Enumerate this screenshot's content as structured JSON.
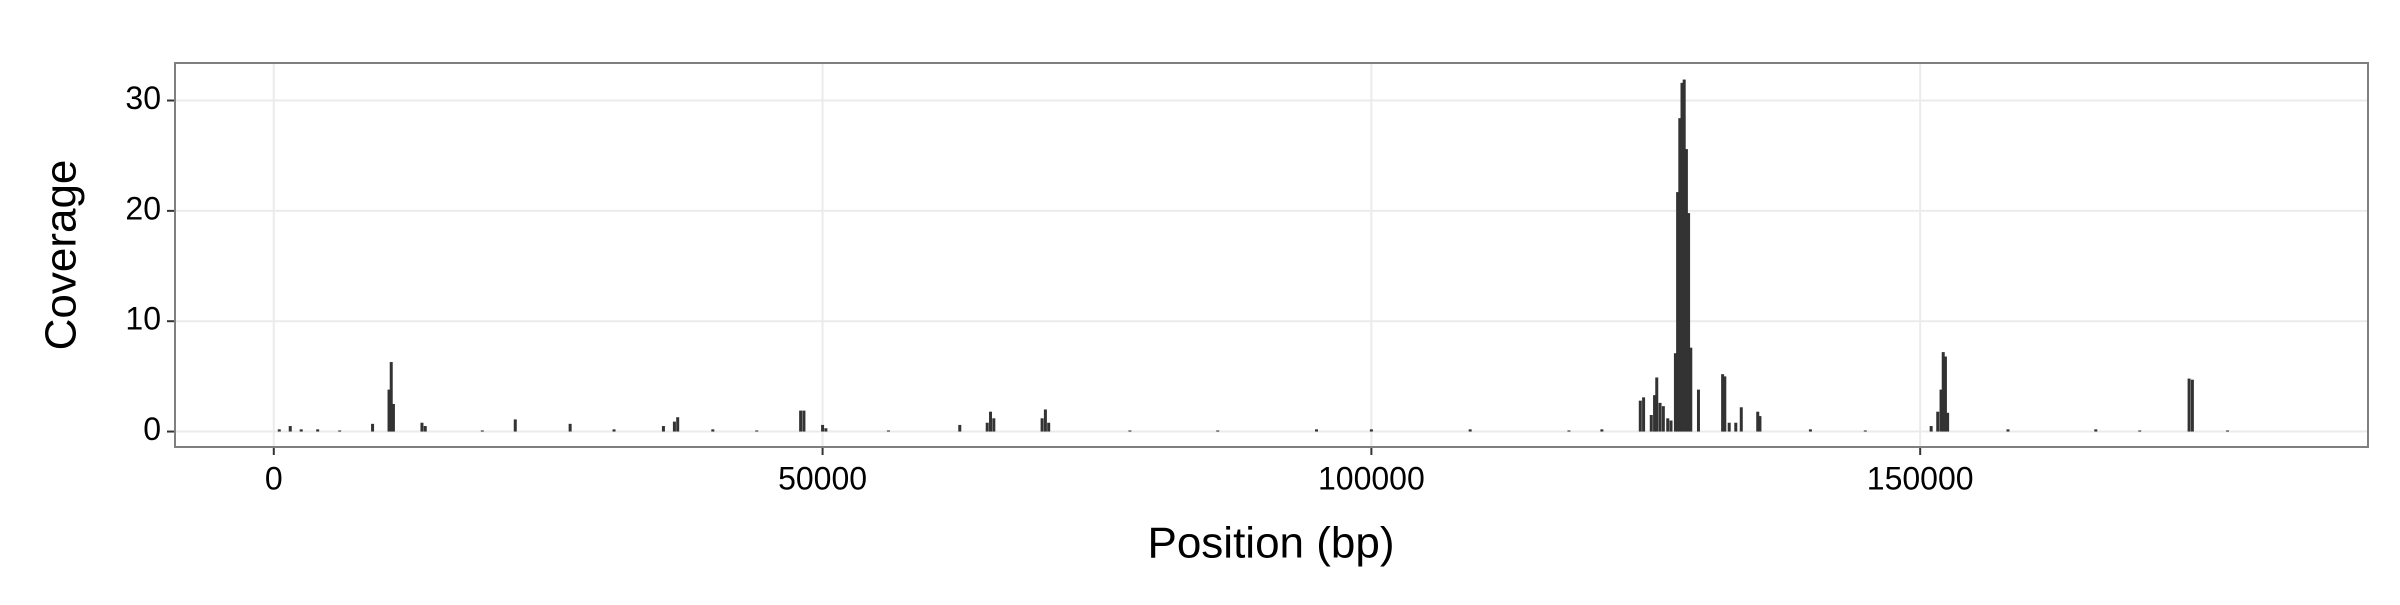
{
  "chart_data": {
    "type": "bar",
    "x_label": "Position (bp)",
    "y_label": "Coverage",
    "x": [
      500,
      1500,
      2500,
      4000,
      6000,
      9000,
      10500,
      10700,
      10900,
      13500,
      13800,
      19000,
      22000,
      27000,
      31000,
      35500,
      36500,
      36800,
      40000,
      44000,
      48000,
      48300,
      50000,
      50300,
      56000,
      62500,
      65000,
      65300,
      65600,
      70000,
      70300,
      70600,
      78000,
      86000,
      95000,
      100000,
      109000,
      118000,
      121000,
      124500,
      124800,
      125500,
      125800,
      126000,
      126300,
      126600,
      127000,
      127300,
      127700,
      127900,
      128100,
      128300,
      128500,
      128700,
      128900,
      129100,
      129800,
      132000,
      132200,
      132600,
      133200,
      133700,
      135200,
      135400,
      140000,
      145000,
      151000,
      151600,
      151900,
      152100,
      152300,
      152500,
      158000,
      166000,
      170000,
      174500,
      174800,
      178000
    ],
    "values": [
      0.2,
      0.5,
      0.2,
      0.2,
      0.1,
      0.7,
      3.8,
      6.3,
      2.5,
      0.8,
      0.5,
      0.1,
      1.1,
      0.7,
      0.2,
      0.5,
      0.9,
      1.3,
      0.2,
      0.1,
      1.9,
      1.9,
      0.6,
      0.3,
      0.1,
      0.6,
      0.8,
      1.8,
      1.2,
      1.2,
      2.0,
      0.8,
      0.1,
      0.1,
      0.2,
      0.2,
      0.2,
      0.1,
      0.2,
      2.8,
      3.1,
      1.5,
      3.3,
      4.9,
      2.6,
      2.3,
      1.2,
      1.0,
      7.1,
      21.7,
      28.4,
      31.6,
      31.9,
      25.6,
      19.8,
      7.6,
      3.8,
      5.2,
      5.0,
      0.8,
      0.8,
      2.2,
      1.8,
      1.4,
      0.2,
      0.1,
      0.5,
      1.8,
      3.8,
      7.2,
      6.8,
      1.7,
      0.2,
      0.2,
      0.1,
      4.8,
      4.7,
      0.1
    ],
    "color": "#333333",
    "xlim": [
      -9000,
      190800
    ],
    "ylim": [
      -1.4,
      33.4
    ],
    "xticks": [
      0,
      50000,
      100000,
      150000
    ],
    "yticks": [
      0,
      10,
      20,
      30
    ],
    "grid": true
  }
}
